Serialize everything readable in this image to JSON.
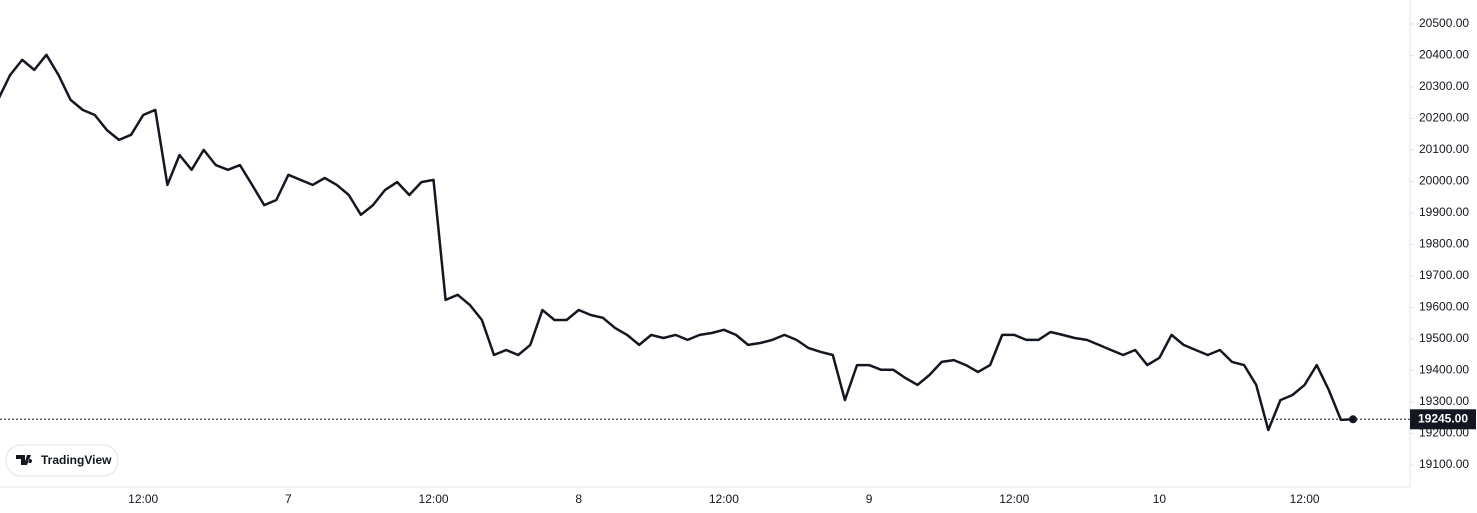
{
  "chart_data": {
    "type": "line",
    "watermark": "TradingView",
    "categories": [
      null,
      null,
      null,
      null,
      null,
      null,
      null,
      null,
      null,
      null,
      null,
      null,
      "12:00",
      null,
      null,
      null,
      null,
      null,
      null,
      null,
      null,
      null,
      null,
      null,
      "7",
      null,
      null,
      null,
      null,
      null,
      null,
      null,
      null,
      null,
      null,
      null,
      "12:00",
      null,
      null,
      null,
      null,
      null,
      null,
      null,
      null,
      null,
      null,
      null,
      "8",
      null,
      null,
      null,
      null,
      null,
      null,
      null,
      null,
      null,
      null,
      null,
      "12:00",
      null,
      null,
      null,
      null,
      null,
      null,
      null,
      null,
      null,
      null,
      null,
      "9",
      null,
      null,
      null,
      null,
      null,
      null,
      null,
      null,
      null,
      null,
      null,
      "12:00",
      null,
      null,
      null,
      null,
      null,
      null,
      null,
      null,
      null,
      null,
      null,
      "10",
      null,
      null,
      null,
      null,
      null,
      null,
      null,
      null,
      null,
      null,
      null,
      "12:00",
      null,
      null,
      null,
      null
    ],
    "series": [
      {
        "color": "#131722",
        "values": [
          20259,
          20338,
          20386,
          20354,
          20402,
          20338,
          20259,
          20227,
          20211,
          20163,
          20132,
          20148,
          20211,
          20227,
          19989,
          20084,
          20037,
          20100,
          20052,
          20037,
          20052,
          19989,
          19925,
          19941,
          20021,
          20005,
          19989,
          20011,
          19989,
          19957,
          19894,
          19925,
          19973,
          19998,
          19957,
          19998,
          20005,
          19624,
          19640,
          19608,
          19560,
          19449,
          19465,
          19449,
          19481,
          19592,
          19560,
          19560,
          19592,
          19576,
          19567,
          19535,
          19513,
          19481,
          19513,
          19503,
          19513,
          19497,
          19513,
          19519,
          19529,
          19513,
          19481,
          19487,
          19497,
          19513,
          19497,
          19471,
          19459,
          19449,
          19306,
          19417,
          19417,
          19402,
          19402,
          19376,
          19354,
          19386,
          19427,
          19433,
          19417,
          19395,
          19417,
          19513,
          19513,
          19497,
          19497,
          19522,
          19513,
          19503,
          19497,
          19481,
          19465,
          19449,
          19465,
          19417,
          19440,
          19513,
          19481,
          19465,
          19449,
          19465,
          19427,
          19417,
          19354,
          19211,
          19306,
          19322,
          19354,
          19417,
          19338,
          19243,
          19245
        ]
      }
    ],
    "last_price": {
      "value": 19245,
      "label": "19245.00"
    },
    "ylim": [
      19030,
      20576
    ],
    "yticks": [
      {
        "value": 19100,
        "label": "19100.00"
      },
      {
        "value": 19200,
        "label": "19200.00"
      },
      {
        "value": 19300,
        "label": "19300.00"
      },
      {
        "value": 19400,
        "label": "19400.00"
      },
      {
        "value": 19500,
        "label": "19500.00"
      },
      {
        "value": 19600,
        "label": "19600.00"
      },
      {
        "value": 19700,
        "label": "19700.00"
      },
      {
        "value": 19800,
        "label": "19800.00"
      },
      {
        "value": 19900,
        "label": "19900.00"
      },
      {
        "value": 20000,
        "label": "20000.00"
      },
      {
        "value": 20100,
        "label": "20100.00"
      },
      {
        "value": 20200,
        "label": "20200.00"
      },
      {
        "value": 20300,
        "label": "20300.00"
      },
      {
        "value": 20400,
        "label": "20400.00"
      },
      {
        "value": 20500,
        "label": "20500.00"
      }
    ]
  }
}
